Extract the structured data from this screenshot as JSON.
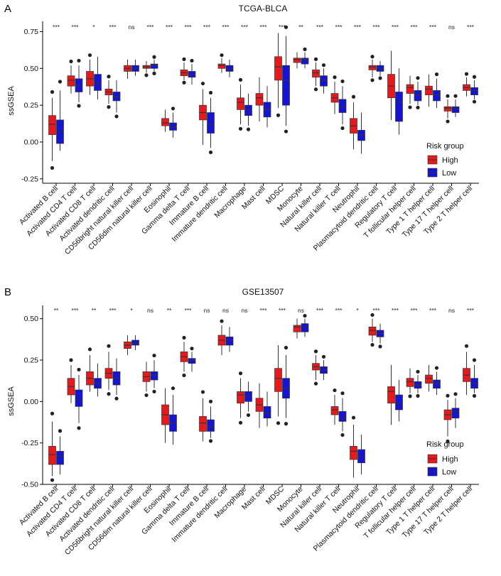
{
  "figure": {
    "legend_title": "Risk group",
    "groups": [
      "High",
      "Low"
    ],
    "colors": {
      "High": "#e8191c",
      "Low": "#1414d2",
      "outline": "#333333",
      "outlier": "#222222"
    }
  },
  "chart_data": [
    {
      "panel": "A",
      "type": "box",
      "title": "TCGA-BLCA",
      "ylabel": "ssGSEA",
      "ylim": [
        -0.28,
        0.82
      ],
      "yticks": [
        -0.25,
        0.0,
        0.25,
        0.5,
        0.75
      ],
      "ytick_labels": [
        "-0.25",
        "0.00",
        "0.25",
        "0.50",
        "0.75"
      ],
      "legend_position": "right-middle",
      "categories": [
        "Activated B cell",
        "Activated CD4 T cell",
        "Activated CD8 T cell",
        "Activated dendritic cell",
        "CD56bright natural killer cell",
        "CD56dim natural killer cell",
        "Eosinophil",
        "Gamma delta T cell",
        "Immature B cell",
        "Immature dendritic cell",
        "Macrophage",
        "Mast cell",
        "MDSC",
        "Monocyte",
        "Natural killer cell",
        "Natural killer T cell",
        "Neutrophil",
        "Plasmacytoid dendritic cell",
        "Regulatory T cell",
        "T follicular helper cell",
        "Type 1 T helper cell",
        "Type 17 T helper cell",
        "Type 2 T helper cell"
      ],
      "significance": [
        "***",
        "***",
        "*",
        "***",
        "ns",
        "***",
        "***",
        "***",
        "***",
        "***",
        "***",
        "***",
        "***",
        "**",
        "***",
        "***",
        "***",
        "***",
        "***",
        "***",
        "***",
        "ns",
        "***"
      ],
      "series": [
        {
          "name": "High",
          "boxes": [
            [
              -0.13,
              0.05,
              0.12,
              0.18,
              0.3
            ],
            [
              0.33,
              0.38,
              0.42,
              0.45,
              0.52
            ],
            [
              0.32,
              0.38,
              0.43,
              0.48,
              0.56
            ],
            [
              0.26,
              0.32,
              0.34,
              0.36,
              0.42
            ],
            [
              0.43,
              0.48,
              0.5,
              0.52,
              0.56
            ],
            [
              0.47,
              0.5,
              0.51,
              0.52,
              0.55
            ],
            [
              0.07,
              0.11,
              0.13,
              0.16,
              0.22
            ],
            [
              0.42,
              0.45,
              0.47,
              0.49,
              0.54
            ],
            [
              -0.02,
              0.15,
              0.2,
              0.25,
              0.36
            ],
            [
              0.47,
              0.5,
              0.52,
              0.53,
              0.57
            ],
            [
              0.12,
              0.22,
              0.27,
              0.3,
              0.39
            ],
            [
              0.14,
              0.25,
              0.3,
              0.33,
              0.44
            ],
            [
              0.23,
              0.42,
              0.51,
              0.58,
              0.74
            ],
            [
              0.5,
              0.54,
              0.56,
              0.57,
              0.61
            ],
            [
              0.38,
              0.44,
              0.47,
              0.49,
              0.54
            ],
            [
              0.19,
              0.27,
              0.3,
              0.33,
              0.41
            ],
            [
              -0.05,
              0.06,
              0.11,
              0.16,
              0.27
            ],
            [
              0.44,
              0.49,
              0.51,
              0.52,
              0.56
            ],
            [
              0.15,
              0.3,
              0.38,
              0.46,
              0.62
            ],
            [
              0.26,
              0.33,
              0.37,
              0.39,
              0.45
            ],
            [
              0.24,
              0.32,
              0.36,
              0.38,
              0.46
            ],
            [
              0.16,
              0.21,
              0.23,
              0.24,
              0.29
            ],
            [
              0.31,
              0.35,
              0.37,
              0.39,
              0.44
            ]
          ]
        },
        {
          "name": "Low",
          "boxes": [
            [
              -0.06,
              -0.01,
              0.07,
              0.15,
              0.35
            ],
            [
              0.27,
              0.34,
              0.38,
              0.43,
              0.52
            ],
            [
              0.29,
              0.35,
              0.4,
              0.46,
              0.58
            ],
            [
              0.2,
              0.28,
              0.31,
              0.34,
              0.42
            ],
            [
              0.45,
              0.48,
              0.5,
              0.52,
              0.56
            ],
            [
              0.48,
              0.5,
              0.52,
              0.53,
              0.56
            ],
            [
              0.03,
              0.08,
              0.1,
              0.13,
              0.2
            ],
            [
              0.39,
              0.44,
              0.46,
              0.48,
              0.53
            ],
            [
              -0.04,
              0.06,
              0.12,
              0.2,
              0.3
            ],
            [
              0.44,
              0.48,
              0.5,
              0.52,
              0.56
            ],
            [
              0.11,
              0.18,
              0.22,
              0.25,
              0.33
            ],
            [
              0.1,
              0.17,
              0.22,
              0.27,
              0.38
            ],
            [
              0.11,
              0.25,
              0.42,
              0.52,
              0.72
            ],
            [
              0.5,
              0.53,
              0.56,
              0.57,
              0.61
            ],
            [
              0.33,
              0.38,
              0.42,
              0.45,
              0.5
            ],
            [
              0.12,
              0.2,
              0.24,
              0.29,
              0.38
            ],
            [
              -0.08,
              0.01,
              0.05,
              0.08,
              0.2
            ],
            [
              0.45,
              0.48,
              0.5,
              0.52,
              0.55
            ],
            [
              0.05,
              0.14,
              0.27,
              0.34,
              0.5
            ],
            [
              0.25,
              0.28,
              0.32,
              0.35,
              0.41
            ],
            [
              0.23,
              0.28,
              0.32,
              0.35,
              0.43
            ],
            [
              0.17,
              0.2,
              0.23,
              0.24,
              0.29
            ],
            [
              0.29,
              0.32,
              0.35,
              0.37,
              0.42
            ]
          ]
        }
      ]
    },
    {
      "panel": "B",
      "type": "box",
      "title": "GSE13507",
      "ylabel": "ssGSEA",
      "ylim": [
        -0.5,
        0.58
      ],
      "yticks": [
        -0.5,
        -0.25,
        0.0,
        0.25,
        0.5
      ],
      "ytick_labels": [
        "-0.50",
        "-0.25",
        "0.00",
        "0.25",
        "0.50"
      ],
      "legend_position": "bottom-right",
      "categories": [
        "Activated B cell",
        "Activated CD4 T cell",
        "Activated CD8 T cell",
        "Activated dendritic cell",
        "CD56bright natural killer cell",
        "CD56dim natural killer cell",
        "Eosinophil",
        "Gamma delta T cell",
        "Immature B cell",
        "Immature dendritic cell",
        "Macrophage",
        "Mast cell",
        "MDSC",
        "Monocyte",
        "Natural killer cell",
        "Natural killer T cell",
        "Neutrophil",
        "Plasmacytoid dendritic cell",
        "Regulatory T cell",
        "T follicular helper cell",
        "Type 1 T helper cell",
        "Type 17 T helper cell",
        "Type 2 T helper cell"
      ],
      "significance": [
        "**",
        "***",
        "**",
        "***",
        "*",
        "ns",
        "**",
        "***",
        "ns",
        "ns",
        "ns",
        "***",
        "***",
        "ns",
        "***",
        "***",
        "*",
        "***",
        "***",
        "***",
        "***",
        "ns",
        "***"
      ],
      "series": [
        {
          "name": "High",
          "boxes": [
            [
              -0.45,
              -0.38,
              -0.32,
              -0.27,
              -0.12
            ],
            [
              -0.01,
              0.04,
              0.09,
              0.14,
              0.22
            ],
            [
              0.06,
              0.1,
              0.14,
              0.18,
              0.28
            ],
            [
              0.07,
              0.14,
              0.17,
              0.2,
              0.3
            ],
            [
              0.28,
              0.32,
              0.34,
              0.36,
              0.4
            ],
            [
              0.06,
              0.12,
              0.15,
              0.18,
              0.24
            ],
            [
              -0.25,
              -0.14,
              -0.08,
              -0.02,
              0.08
            ],
            [
              0.18,
              0.24,
              0.27,
              0.3,
              0.36
            ],
            [
              -0.24,
              -0.18,
              -0.13,
              -0.09,
              0.02
            ],
            [
              0.28,
              0.34,
              0.37,
              0.4,
              0.46
            ],
            [
              -0.1,
              -0.01,
              0.04,
              0.06,
              0.14
            ],
            [
              -0.16,
              -0.06,
              -0.02,
              0.02,
              0.11
            ],
            [
              -0.09,
              0.06,
              0.14,
              0.2,
              0.34
            ],
            [
              0.38,
              0.42,
              0.45,
              0.46,
              0.5
            ],
            [
              0.13,
              0.19,
              0.21,
              0.23,
              0.28
            ],
            [
              -0.14,
              -0.08,
              -0.05,
              -0.03,
              0.04
            ],
            [
              -0.46,
              -0.35,
              -0.3,
              -0.27,
              -0.14
            ],
            [
              0.36,
              0.4,
              0.43,
              0.45,
              0.5
            ],
            [
              -0.14,
              -0.01,
              0.06,
              0.09,
              0.22
            ],
            [
              0.05,
              0.09,
              0.12,
              0.14,
              0.2
            ],
            [
              0.06,
              0.11,
              0.14,
              0.16,
              0.22
            ],
            [
              -0.21,
              -0.11,
              -0.08,
              -0.05,
              0.01
            ],
            [
              0.04,
              0.12,
              0.16,
              0.2,
              0.3
            ]
          ]
        },
        {
          "name": "Low",
          "boxes": [
            [
              -0.44,
              -0.38,
              -0.33,
              -0.3,
              -0.21
            ],
            [
              -0.13,
              -0.03,
              0.01,
              0.07,
              0.16
            ],
            [
              0.03,
              0.08,
              0.11,
              0.14,
              0.23
            ],
            [
              0.04,
              0.1,
              0.14,
              0.18,
              0.26
            ],
            [
              0.31,
              0.34,
              0.35,
              0.37,
              0.4
            ],
            [
              0.08,
              0.13,
              0.16,
              0.18,
              0.25
            ],
            [
              -0.26,
              -0.18,
              -0.13,
              -0.08,
              0.04
            ],
            [
              0.18,
              0.23,
              0.25,
              0.26,
              0.3
            ],
            [
              -0.22,
              -0.18,
              -0.15,
              -0.11,
              -0.03
            ],
            [
              0.3,
              0.34,
              0.37,
              0.39,
              0.45
            ],
            [
              -0.06,
              0.0,
              0.03,
              0.06,
              0.12
            ],
            [
              -0.15,
              -0.1,
              -0.07,
              -0.03,
              0.06
            ],
            [
              -0.1,
              0.02,
              0.08,
              0.14,
              0.28
            ],
            [
              0.39,
              0.42,
              0.45,
              0.47,
              0.5
            ],
            [
              0.13,
              0.17,
              0.19,
              0.21,
              0.25
            ],
            [
              -0.18,
              -0.12,
              -0.1,
              -0.06,
              0.02
            ],
            [
              -0.44,
              -0.37,
              -0.33,
              -0.29,
              -0.2
            ],
            [
              0.35,
              0.39,
              0.41,
              0.43,
              0.47
            ],
            [
              -0.12,
              -0.05,
              -0.01,
              0.04,
              0.13
            ],
            [
              0.05,
              0.08,
              0.1,
              0.12,
              0.16
            ],
            [
              0.04,
              0.08,
              0.11,
              0.13,
              0.18
            ],
            [
              -0.16,
              -0.1,
              -0.06,
              -0.04,
              0.02
            ],
            [
              0.05,
              0.08,
              0.11,
              0.14,
              0.22
            ]
          ]
        }
      ]
    }
  ]
}
